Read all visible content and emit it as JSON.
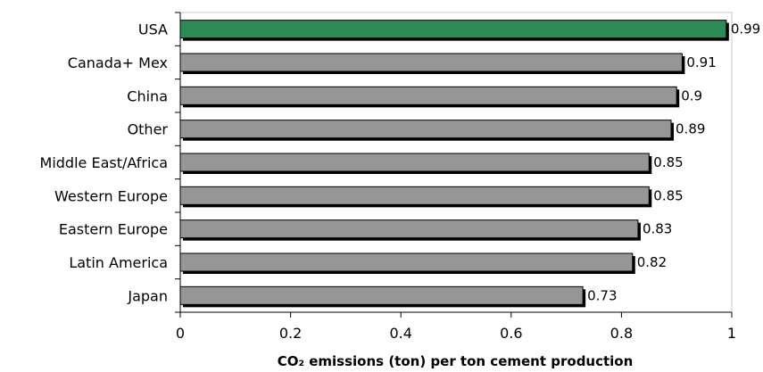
{
  "chart_data": {
    "type": "bar",
    "orientation": "horizontal",
    "categories": [
      "USA",
      "Canada+ Mex",
      "China",
      "Other",
      "Middle East/Africa",
      "Western Europe",
      "Eastern Europe",
      "Latin America",
      "Japan"
    ],
    "values": [
      0.99,
      0.91,
      0.9,
      0.89,
      0.85,
      0.85,
      0.83,
      0.82,
      0.73
    ],
    "value_labels": [
      "0.99",
      "0.91",
      "0.9",
      "0.89",
      "0.85",
      "0.85",
      "0.83",
      "0.82",
      "0.73"
    ],
    "xlabel": "CO₂ emissions (ton) per ton cement production",
    "xlim": [
      0,
      1
    ],
    "xticks": [
      "0",
      "0.2",
      "0.4",
      "0.6",
      "0.8",
      "1"
    ],
    "grid": false,
    "legend": "none",
    "colors": {
      "highlight": "#2e8b57",
      "bar": "#969696",
      "shadow": "#000000"
    },
    "highlight_index": 0
  }
}
